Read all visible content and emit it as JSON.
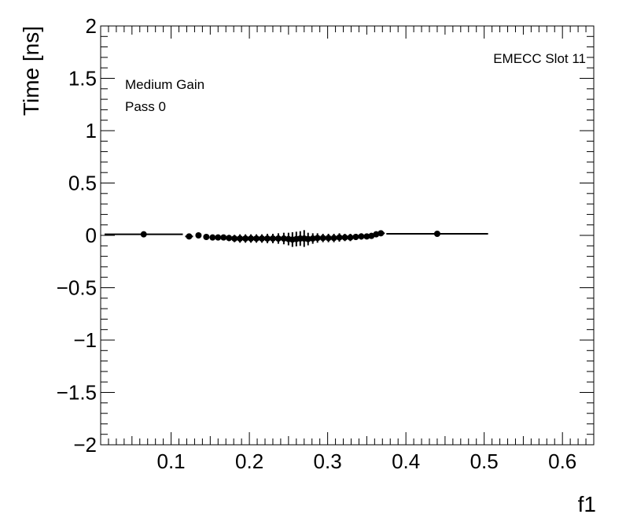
{
  "chart_data": {
    "type": "scatter",
    "title": "",
    "xlabel": "f1",
    "ylabel": "Time [ns]",
    "xlim": [
      0.01,
      0.64
    ],
    "ylim": [
      -2,
      2
    ],
    "xticks": [
      0.1,
      0.2,
      0.3,
      0.4,
      0.5,
      0.6
    ],
    "xtick_labels": [
      "0.1",
      "0.2",
      "0.3",
      "0.4",
      "0.5",
      "0.6"
    ],
    "yticks": [
      -2,
      -1.5,
      -1,
      -0.5,
      0,
      0.5,
      1,
      1.5,
      2
    ],
    "ytick_labels": [
      "−2",
      "−1.5",
      "−1",
      "−0.5",
      "0",
      "0.5",
      "1",
      "1.5",
      "2"
    ],
    "annotations": {
      "top_right": "EMECC Slot 11",
      "gain": "Medium Gain",
      "pass": "Pass 0"
    },
    "series": [
      {
        "marker": "circle",
        "color": "#000000",
        "points": [
          {
            "x": 0.065,
            "y": 0.01,
            "xerr": 0.05,
            "yerr": 0.01
          },
          {
            "x": 0.123,
            "y": -0.01,
            "xerr": 0.005,
            "yerr": 0.01
          },
          {
            "x": 0.135,
            "y": 0.0,
            "xerr": 0.003,
            "yerr": 0.01
          },
          {
            "x": 0.145,
            "y": -0.015,
            "xerr": 0.003,
            "yerr": 0.02
          },
          {
            "x": 0.153,
            "y": -0.02,
            "xerr": 0.003,
            "yerr": 0.02
          },
          {
            "x": 0.16,
            "y": -0.02,
            "xerr": 0.003,
            "yerr": 0.02
          },
          {
            "x": 0.167,
            "y": -0.02,
            "xerr": 0.003,
            "yerr": 0.025
          },
          {
            "x": 0.174,
            "y": -0.025,
            "xerr": 0.003,
            "yerr": 0.03
          },
          {
            "x": 0.181,
            "y": -0.03,
            "xerr": 0.003,
            "yerr": 0.035
          },
          {
            "x": 0.188,
            "y": -0.03,
            "xerr": 0.003,
            "yerr": 0.04
          },
          {
            "x": 0.195,
            "y": -0.03,
            "xerr": 0.003,
            "yerr": 0.04
          },
          {
            "x": 0.202,
            "y": -0.03,
            "xerr": 0.003,
            "yerr": 0.04
          },
          {
            "x": 0.209,
            "y": -0.03,
            "xerr": 0.003,
            "yerr": 0.04
          },
          {
            "x": 0.216,
            "y": -0.03,
            "xerr": 0.003,
            "yerr": 0.04
          },
          {
            "x": 0.223,
            "y": -0.03,
            "xerr": 0.003,
            "yerr": 0.045
          },
          {
            "x": 0.23,
            "y": -0.03,
            "xerr": 0.003,
            "yerr": 0.045
          },
          {
            "x": 0.237,
            "y": -0.03,
            "xerr": 0.003,
            "yerr": 0.05
          },
          {
            "x": 0.244,
            "y": -0.03,
            "xerr": 0.003,
            "yerr": 0.055
          },
          {
            "x": 0.25,
            "y": -0.035,
            "xerr": 0.003,
            "yerr": 0.06
          },
          {
            "x": 0.255,
            "y": -0.04,
            "xerr": 0.003,
            "yerr": 0.07
          },
          {
            "x": 0.26,
            "y": -0.035,
            "xerr": 0.003,
            "yerr": 0.07
          },
          {
            "x": 0.265,
            "y": -0.03,
            "xerr": 0.003,
            "yerr": 0.07
          },
          {
            "x": 0.27,
            "y": -0.03,
            "xerr": 0.003,
            "yerr": 0.08
          },
          {
            "x": 0.275,
            "y": -0.035,
            "xerr": 0.003,
            "yerr": 0.06
          },
          {
            "x": 0.281,
            "y": -0.03,
            "xerr": 0.003,
            "yerr": 0.05
          },
          {
            "x": 0.287,
            "y": -0.025,
            "xerr": 0.003,
            "yerr": 0.045
          },
          {
            "x": 0.294,
            "y": -0.025,
            "xerr": 0.003,
            "yerr": 0.04
          },
          {
            "x": 0.301,
            "y": -0.025,
            "xerr": 0.003,
            "yerr": 0.04
          },
          {
            "x": 0.308,
            "y": -0.025,
            "xerr": 0.003,
            "yerr": 0.04
          },
          {
            "x": 0.315,
            "y": -0.02,
            "xerr": 0.003,
            "yerr": 0.04
          },
          {
            "x": 0.322,
            "y": -0.02,
            "xerr": 0.003,
            "yerr": 0.035
          },
          {
            "x": 0.329,
            "y": -0.02,
            "xerr": 0.003,
            "yerr": 0.035
          },
          {
            "x": 0.336,
            "y": -0.015,
            "xerr": 0.003,
            "yerr": 0.03
          },
          {
            "x": 0.343,
            "y": -0.01,
            "xerr": 0.003,
            "yerr": 0.03
          },
          {
            "x": 0.35,
            "y": -0.01,
            "xerr": 0.003,
            "yerr": 0.025
          },
          {
            "x": 0.356,
            "y": -0.005,
            "xerr": 0.003,
            "yerr": 0.02
          },
          {
            "x": 0.362,
            "y": 0.01,
            "xerr": 0.003,
            "yerr": 0.02
          },
          {
            "x": 0.368,
            "y": 0.02,
            "xerr": 0.005,
            "yerr": 0.015
          },
          {
            "x": 0.44,
            "y": 0.015,
            "xerr": 0.065,
            "yerr": 0.01
          }
        ]
      }
    ]
  }
}
